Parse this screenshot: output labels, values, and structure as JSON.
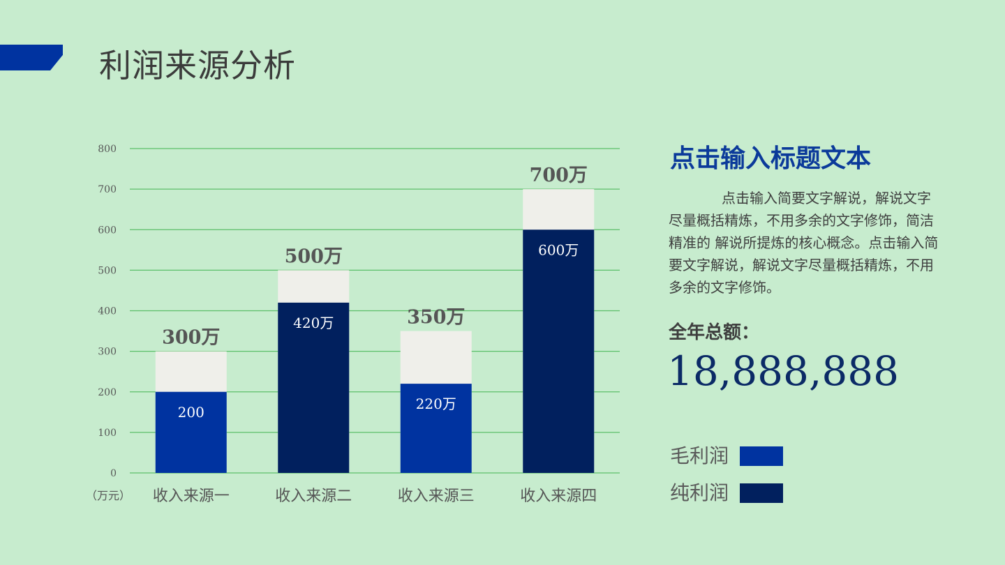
{
  "page": {
    "title": "利润来源分析"
  },
  "colors": {
    "background": "#c7ecce",
    "accent": "#0033a0",
    "gross_profit": "#0033a0",
    "net_profit": "#01205e",
    "remainder": "#efefea",
    "grid": "#5cbf6a"
  },
  "sidebar": {
    "title": "点击输入标题文本",
    "body": "点击输入简要文字解说，解说文字尽量概括精炼，不用多余的文字修饰，简洁精准的 解说所提炼的核心概念。点击输入简要文字解说，解说文字尽量概括精炼，不用多余的文字修饰。",
    "total_label": "全年总额：",
    "total_value": "18,888,888"
  },
  "legend": [
    {
      "label": "毛利润",
      "color": "#0033a0"
    },
    {
      "label": "纯利润",
      "color": "#01205e"
    }
  ],
  "chart_data": {
    "type": "bar",
    "unit_label": "（万元）",
    "ylim": [
      0,
      800
    ],
    "yticks": [
      0,
      100,
      200,
      300,
      400,
      500,
      600,
      700,
      800
    ],
    "grid": true,
    "categories": [
      "收入来源一",
      "收入来源二",
      "收入来源三",
      "收入来源四"
    ],
    "series": [
      {
        "name": "毛利润",
        "values": [
          200,
          0,
          220,
          0
        ]
      },
      {
        "name": "纯利润",
        "values": [
          0,
          420,
          0,
          600
        ]
      }
    ],
    "totals": [
      300,
      500,
      350,
      700
    ],
    "bar_labels": [
      "200",
      "420万",
      "220万",
      "600万"
    ],
    "total_labels": [
      "300万",
      "500万",
      "350万",
      "700万"
    ]
  }
}
